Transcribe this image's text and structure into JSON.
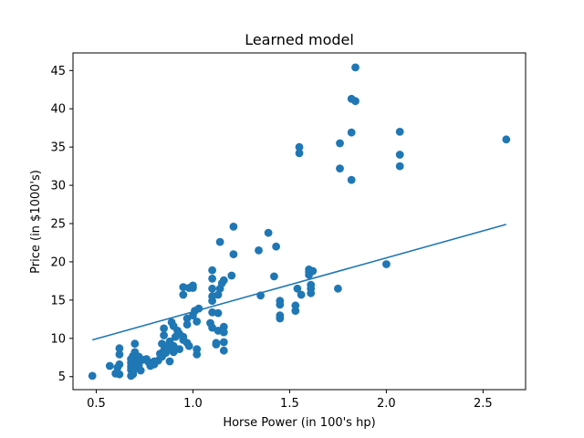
{
  "chart_data": {
    "type": "scatter",
    "title": "Learned model",
    "xlabel": "Horse Power (in 100's hp)",
    "ylabel": "Price (in $1000's)",
    "xlim": [
      0.38,
      2.72
    ],
    "ylim": [
      3.3,
      47.3
    ],
    "xticks": [
      0.5,
      1.0,
      1.5,
      2.0,
      2.5
    ],
    "xtick_labels": [
      "0.5",
      "1.0",
      "1.5",
      "2.0",
      "2.5"
    ],
    "yticks": [
      5,
      10,
      15,
      20,
      25,
      30,
      35,
      40,
      45
    ],
    "ytick_labels": [
      "5",
      "10",
      "15",
      "20",
      "25",
      "30",
      "35",
      "40",
      "45"
    ],
    "grid": false,
    "colors": {
      "points": "#1f77b4",
      "line": "#1f77b4"
    },
    "points": [
      [
        0.48,
        5.1
      ],
      [
        0.57,
        6.4
      ],
      [
        0.6,
        5.4
      ],
      [
        0.61,
        6.2
      ],
      [
        0.62,
        5.3
      ],
      [
        0.62,
        6.6
      ],
      [
        0.62,
        7.9
      ],
      [
        0.62,
        8.7
      ],
      [
        0.68,
        5.1
      ],
      [
        0.68,
        5.9
      ],
      [
        0.68,
        6.3
      ],
      [
        0.68,
        6.8
      ],
      [
        0.68,
        7.3
      ],
      [
        0.69,
        5.5
      ],
      [
        0.69,
        7.7
      ],
      [
        0.69,
        5.3
      ],
      [
        0.7,
        8.2
      ],
      [
        0.7,
        9.3
      ],
      [
        0.7,
        6.1
      ],
      [
        0.71,
        7.0
      ],
      [
        0.72,
        6.5
      ],
      [
        0.72,
        7.6
      ],
      [
        0.73,
        5.8
      ],
      [
        0.74,
        7.2
      ],
      [
        0.76,
        7.3
      ],
      [
        0.77,
        6.9
      ],
      [
        0.78,
        6.4
      ],
      [
        0.8,
        7.0
      ],
      [
        0.8,
        6.6
      ],
      [
        0.82,
        7.1
      ],
      [
        0.83,
        8.0
      ],
      [
        0.84,
        9.3
      ],
      [
        0.84,
        7.6
      ],
      [
        0.85,
        8.4
      ],
      [
        0.85,
        10.4
      ],
      [
        0.85,
        11.3
      ],
      [
        0.86,
        8.1
      ],
      [
        0.87,
        9.0
      ],
      [
        0.87,
        8.7
      ],
      [
        0.88,
        9.6
      ],
      [
        0.88,
        7.0
      ],
      [
        0.89,
        12.1
      ],
      [
        0.9,
        8.2
      ],
      [
        0.9,
        9.0
      ],
      [
        0.9,
        11.6
      ],
      [
        0.91,
        10.2
      ],
      [
        0.92,
        11.0
      ],
      [
        0.93,
        8.6
      ],
      [
        0.93,
        10.6
      ],
      [
        0.95,
        9.8
      ],
      [
        0.95,
        10.2
      ],
      [
        0.95,
        16.7
      ],
      [
        0.95,
        15.7
      ],
      [
        0.97,
        9.4
      ],
      [
        0.97,
        11.8
      ],
      [
        0.97,
        12.6
      ],
      [
        0.98,
        16.6
      ],
      [
        0.98,
        9.0
      ],
      [
        1.0,
        13.0
      ],
      [
        1.0,
        16.9
      ],
      [
        1.0,
        16.6
      ],
      [
        1.01,
        13.6
      ],
      [
        1.02,
        12.2
      ],
      [
        1.02,
        8.6
      ],
      [
        1.02,
        7.9
      ],
      [
        1.03,
        13.9
      ],
      [
        1.09,
        12.0
      ],
      [
        1.1,
        11.4
      ],
      [
        1.1,
        15.5
      ],
      [
        1.1,
        14.9
      ],
      [
        1.1,
        17.8
      ],
      [
        1.1,
        18.9
      ],
      [
        1.1,
        16.5
      ],
      [
        1.1,
        13.4
      ],
      [
        1.12,
        9.4
      ],
      [
        1.12,
        9.2
      ],
      [
        1.13,
        11.0
      ],
      [
        1.13,
        13.3
      ],
      [
        1.13,
        15.7
      ],
      [
        1.14,
        16.5
      ],
      [
        1.14,
        22.6
      ],
      [
        1.15,
        17.2
      ],
      [
        1.16,
        17.6
      ],
      [
        1.16,
        11.5
      ],
      [
        1.16,
        10.8
      ],
      [
        1.16,
        9.5
      ],
      [
        1.16,
        8.4
      ],
      [
        1.2,
        18.2
      ],
      [
        1.21,
        24.6
      ],
      [
        1.21,
        21.0
      ],
      [
        1.34,
        21.5
      ],
      [
        1.35,
        15.6
      ],
      [
        1.39,
        23.8
      ],
      [
        1.42,
        18.1
      ],
      [
        1.43,
        22.0
      ],
      [
        1.45,
        14.9
      ],
      [
        1.45,
        14.4
      ],
      [
        1.45,
        13.0
      ],
      [
        1.45,
        12.6
      ],
      [
        1.53,
        14.3
      ],
      [
        1.53,
        13.6
      ],
      [
        1.54,
        16.5
      ],
      [
        1.55,
        35.0
      ],
      [
        1.55,
        34.2
      ],
      [
        1.56,
        15.7
      ],
      [
        1.6,
        19.0
      ],
      [
        1.6,
        18.7
      ],
      [
        1.6,
        18.3
      ],
      [
        1.61,
        17.0
      ],
      [
        1.61,
        16.5
      ],
      [
        1.61,
        15.9
      ],
      [
        1.62,
        18.8
      ],
      [
        1.75,
        16.5
      ],
      [
        1.76,
        35.5
      ],
      [
        1.76,
        32.2
      ],
      [
        1.82,
        30.7
      ],
      [
        1.82,
        36.9
      ],
      [
        1.82,
        41.3
      ],
      [
        1.84,
        41.0
      ],
      [
        1.84,
        45.4
      ],
      [
        2.0,
        19.7
      ],
      [
        2.07,
        37.0
      ],
      [
        2.07,
        34.0
      ],
      [
        2.07,
        32.5
      ],
      [
        2.62,
        36.0
      ]
    ],
    "fit_line": {
      "x": [
        0.48,
        2.62
      ],
      "y": [
        9.8,
        24.9
      ]
    }
  }
}
